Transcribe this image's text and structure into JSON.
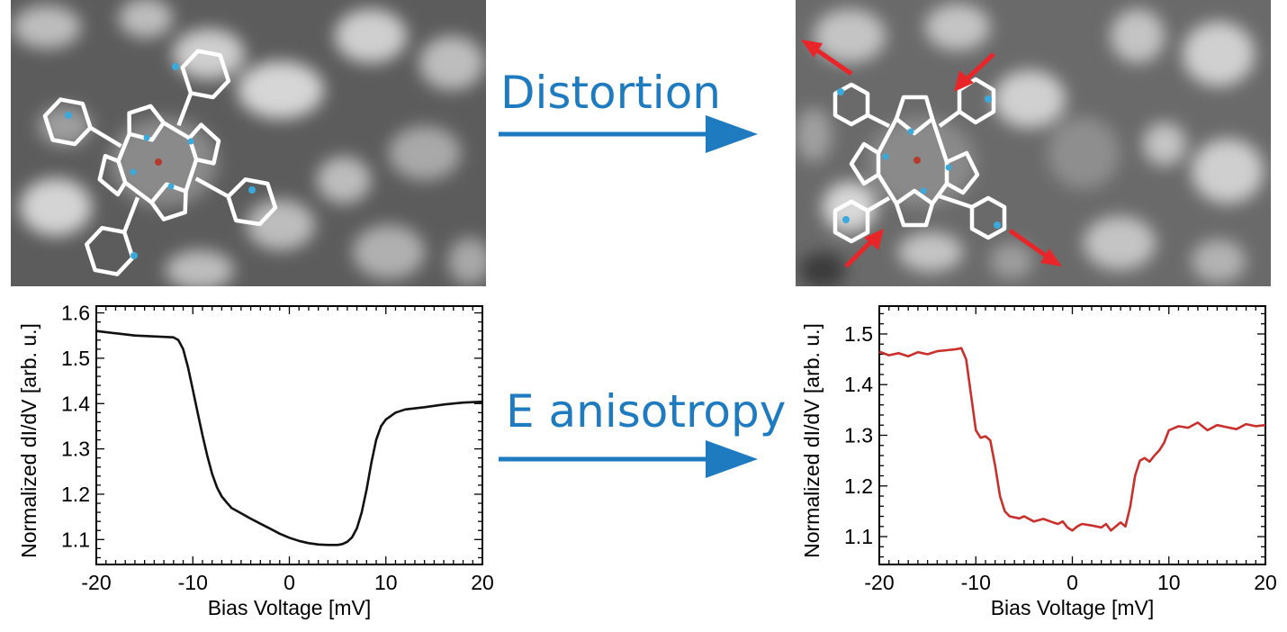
{
  "annotations": {
    "top_arrow_label": "Distortion",
    "bottom_arrow_label": "E anisotropy"
  },
  "colors": {
    "arrow_blue": "#1f7bc0",
    "left_curve": "#111111",
    "right_curve": "#c9302c",
    "strain_arrows": "#e8262a",
    "nitrogen_dot": "#3aa9dc",
    "metal_dot": "#b53a2e"
  },
  "chart_data": [
    {
      "type": "line",
      "xlabel": "Bias Voltage [mV]",
      "ylabel": "Normalized dI/dV [arb. u.]",
      "xlim": [
        -20,
        20
      ],
      "ylim": [
        1.045,
        1.615
      ],
      "xticks": [
        -20,
        -10,
        0,
        10,
        20
      ],
      "xtick_labels": [
        "-20",
        "-10",
        "0",
        "10",
        "20"
      ],
      "yticks": [
        1.1,
        1.2,
        1.3,
        1.4,
        1.5,
        1.6
      ],
      "ytick_labels": [
        "1.1",
        "1.2",
        "1.3",
        "1.4",
        "1.5",
        "1.6"
      ],
      "grid": false,
      "series": [
        {
          "color": "#111111",
          "x": [
            -20,
            -18,
            -16,
            -14,
            -12,
            -11.5,
            -11,
            -10.5,
            -10,
            -9.5,
            -9,
            -8.5,
            -8,
            -7.5,
            -7,
            -6.5,
            -6,
            -5,
            -4,
            -3,
            -2,
            -1,
            0,
            1,
            2,
            3,
            4,
            5,
            5.5,
            6,
            6.5,
            7,
            7.5,
            8,
            8.5,
            9,
            9.5,
            10,
            11,
            12,
            14,
            16,
            18,
            20
          ],
          "y": [
            1.56,
            1.555,
            1.55,
            1.548,
            1.546,
            1.54,
            1.52,
            1.48,
            1.43,
            1.38,
            1.33,
            1.285,
            1.245,
            1.215,
            1.195,
            1.182,
            1.17,
            1.158,
            1.146,
            1.135,
            1.124,
            1.113,
            1.104,
            1.097,
            1.092,
            1.089,
            1.088,
            1.088,
            1.09,
            1.095,
            1.105,
            1.125,
            1.16,
            1.21,
            1.27,
            1.32,
            1.35,
            1.365,
            1.38,
            1.387,
            1.392,
            1.398,
            1.402,
            1.404
          ]
        }
      ]
    },
    {
      "type": "line",
      "xlabel": "Bias Voltage [mV]",
      "ylabel": "Normalized dI/dV [arb. u.]",
      "xlim": [
        -20,
        20
      ],
      "ylim": [
        1.045,
        1.555
      ],
      "xticks": [
        -20,
        -10,
        0,
        10,
        20
      ],
      "xtick_labels": [
        "-20",
        "-10",
        "0",
        "10",
        "20"
      ],
      "yticks": [
        1.1,
        1.2,
        1.3,
        1.4,
        1.5
      ],
      "ytick_labels": [
        "1.1",
        "1.2",
        "1.3",
        "1.4",
        "1.5"
      ],
      "grid": false,
      "series": [
        {
          "color": "#c9302c",
          "x": [
            -20,
            -19,
            -18,
            -17,
            -16,
            -15,
            -14,
            -13,
            -12,
            -11.5,
            -11,
            -10.5,
            -10,
            -9.5,
            -9,
            -8.5,
            -8,
            -7.5,
            -7,
            -6.5,
            -6,
            -5.5,
            -5,
            -4,
            -3,
            -2,
            -1.5,
            -1,
            -0.5,
            0,
            0.5,
            1,
            2,
            3,
            3.5,
            4,
            5,
            5.5,
            6,
            6.5,
            7,
            7.5,
            8,
            8.5,
            9,
            9.5,
            10,
            11,
            12,
            13,
            14,
            15,
            16,
            17,
            18,
            19,
            20
          ],
          "y": [
            1.465,
            1.458,
            1.462,
            1.456,
            1.464,
            1.46,
            1.466,
            1.468,
            1.47,
            1.472,
            1.45,
            1.38,
            1.31,
            1.295,
            1.298,
            1.29,
            1.24,
            1.18,
            1.15,
            1.14,
            1.138,
            1.136,
            1.14,
            1.13,
            1.135,
            1.128,
            1.125,
            1.13,
            1.118,
            1.112,
            1.12,
            1.125,
            1.122,
            1.118,
            1.125,
            1.112,
            1.128,
            1.12,
            1.16,
            1.22,
            1.25,
            1.255,
            1.248,
            1.26,
            1.27,
            1.285,
            1.31,
            1.318,
            1.315,
            1.325,
            1.31,
            1.32,
            1.316,
            1.312,
            1.322,
            1.318,
            1.32
          ]
        }
      ]
    }
  ]
}
